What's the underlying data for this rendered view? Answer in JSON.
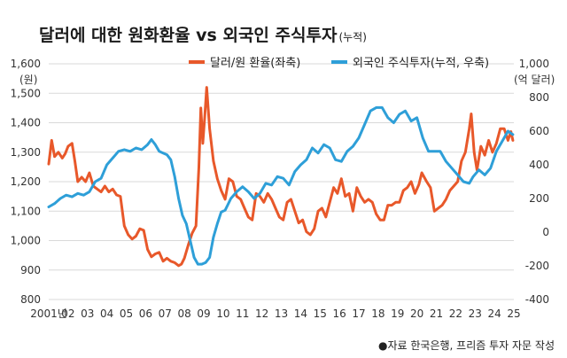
{
  "chart_data": {
    "type": "line",
    "title": "달러에 대한 원화환율 vs 외국인 주식투자",
    "title_suffix": "(누적)",
    "left_axis": {
      "unit": "(원)",
      "ticks": [
        "1,600",
        "1,500",
        "1,400",
        "1,300",
        "1,200",
        "1,100",
        "1,000",
        "900",
        "800"
      ],
      "ylim": [
        800,
        1600
      ]
    },
    "right_axis": {
      "unit": "(억 달러)",
      "ticks": [
        "1,000",
        "800",
        "600",
        "400",
        "200",
        "0",
        "-200",
        "-400"
      ],
      "ylim": [
        -400,
        1000
      ]
    },
    "x_ticks": [
      "2001년",
      "02",
      "03",
      "04",
      "05",
      "06",
      "07",
      "08",
      "09",
      "10",
      "11",
      "12",
      "13",
      "14",
      "15",
      "16",
      "17",
      "18",
      "19",
      "20",
      "21",
      "22",
      "23",
      "24",
      "25"
    ],
    "xlim": [
      2001,
      2025
    ],
    "grid": "horizontal",
    "legend_position": "top",
    "source": "●자료 한국은행, 프리즘 투자 자문 작성",
    "series": [
      {
        "name": "달러/원 환율(좌축)",
        "axis": "left",
        "color": "#e8582a",
        "points": [
          [
            2001.0,
            1260
          ],
          [
            2001.15,
            1340
          ],
          [
            2001.3,
            1285
          ],
          [
            2001.5,
            1300
          ],
          [
            2001.7,
            1280
          ],
          [
            2001.85,
            1295
          ],
          [
            2002.0,
            1320
          ],
          [
            2002.2,
            1330
          ],
          [
            2002.35,
            1270
          ],
          [
            2002.5,
            1200
          ],
          [
            2002.7,
            1215
          ],
          [
            2002.9,
            1200
          ],
          [
            2003.1,
            1230
          ],
          [
            2003.3,
            1185
          ],
          [
            2003.5,
            1175
          ],
          [
            2003.7,
            1165
          ],
          [
            2003.9,
            1185
          ],
          [
            2004.1,
            1165
          ],
          [
            2004.3,
            1175
          ],
          [
            2004.5,
            1155
          ],
          [
            2004.7,
            1150
          ],
          [
            2004.9,
            1050
          ],
          [
            2005.1,
            1020
          ],
          [
            2005.3,
            1005
          ],
          [
            2005.5,
            1015
          ],
          [
            2005.7,
            1040
          ],
          [
            2005.9,
            1035
          ],
          [
            2006.1,
            970
          ],
          [
            2006.3,
            945
          ],
          [
            2006.5,
            955
          ],
          [
            2006.7,
            960
          ],
          [
            2006.9,
            930
          ],
          [
            2007.1,
            940
          ],
          [
            2007.3,
            930
          ],
          [
            2007.5,
            925
          ],
          [
            2007.7,
            915
          ],
          [
            2007.85,
            920
          ],
          [
            2008.0,
            940
          ],
          [
            2008.2,
            985
          ],
          [
            2008.4,
            1025
          ],
          [
            2008.6,
            1050
          ],
          [
            2008.75,
            1250
          ],
          [
            2008.85,
            1450
          ],
          [
            2008.95,
            1330
          ],
          [
            2009.05,
            1420
          ],
          [
            2009.15,
            1520
          ],
          [
            2009.3,
            1380
          ],
          [
            2009.5,
            1270
          ],
          [
            2009.7,
            1210
          ],
          [
            2009.9,
            1170
          ],
          [
            2010.1,
            1140
          ],
          [
            2010.3,
            1210
          ],
          [
            2010.5,
            1200
          ],
          [
            2010.7,
            1150
          ],
          [
            2010.9,
            1140
          ],
          [
            2011.1,
            1110
          ],
          [
            2011.3,
            1080
          ],
          [
            2011.5,
            1070
          ],
          [
            2011.7,
            1160
          ],
          [
            2011.9,
            1150
          ],
          [
            2012.1,
            1130
          ],
          [
            2012.3,
            1160
          ],
          [
            2012.5,
            1140
          ],
          [
            2012.7,
            1110
          ],
          [
            2012.9,
            1080
          ],
          [
            2013.1,
            1070
          ],
          [
            2013.3,
            1130
          ],
          [
            2013.5,
            1140
          ],
          [
            2013.7,
            1100
          ],
          [
            2013.9,
            1060
          ],
          [
            2014.1,
            1070
          ],
          [
            2014.3,
            1030
          ],
          [
            2014.5,
            1020
          ],
          [
            2014.7,
            1040
          ],
          [
            2014.9,
            1100
          ],
          [
            2015.1,
            1110
          ],
          [
            2015.3,
            1080
          ],
          [
            2015.5,
            1130
          ],
          [
            2015.7,
            1180
          ],
          [
            2015.9,
            1160
          ],
          [
            2016.1,
            1210
          ],
          [
            2016.3,
            1150
          ],
          [
            2016.5,
            1160
          ],
          [
            2016.7,
            1100
          ],
          [
            2016.9,
            1180
          ],
          [
            2017.1,
            1150
          ],
          [
            2017.3,
            1130
          ],
          [
            2017.5,
            1140
          ],
          [
            2017.7,
            1130
          ],
          [
            2017.9,
            1090
          ],
          [
            2018.1,
            1070
          ],
          [
            2018.3,
            1070
          ],
          [
            2018.5,
            1120
          ],
          [
            2018.7,
            1120
          ],
          [
            2018.9,
            1130
          ],
          [
            2019.1,
            1130
          ],
          [
            2019.3,
            1170
          ],
          [
            2019.5,
            1180
          ],
          [
            2019.7,
            1200
          ],
          [
            2019.9,
            1160
          ],
          [
            2020.1,
            1190
          ],
          [
            2020.25,
            1230
          ],
          [
            2020.5,
            1200
          ],
          [
            2020.7,
            1180
          ],
          [
            2020.9,
            1100
          ],
          [
            2021.1,
            1110
          ],
          [
            2021.3,
            1120
          ],
          [
            2021.5,
            1140
          ],
          [
            2021.7,
            1170
          ],
          [
            2021.9,
            1185
          ],
          [
            2022.1,
            1200
          ],
          [
            2022.3,
            1270
          ],
          [
            2022.5,
            1300
          ],
          [
            2022.7,
            1380
          ],
          [
            2022.8,
            1430
          ],
          [
            2022.95,
            1300
          ],
          [
            2023.1,
            1240
          ],
          [
            2023.3,
            1320
          ],
          [
            2023.5,
            1290
          ],
          [
            2023.7,
            1340
          ],
          [
            2023.9,
            1300
          ],
          [
            2024.1,
            1330
          ],
          [
            2024.3,
            1380
          ],
          [
            2024.5,
            1380
          ],
          [
            2024.7,
            1340
          ],
          [
            2024.85,
            1370
          ],
          [
            2024.95,
            1340
          ]
        ]
      },
      {
        "name": "외국인 주식투자(누적, 우축)",
        "axis": "right",
        "color": "#2e9fd8",
        "points": [
          [
            2001.0,
            150
          ],
          [
            2001.3,
            170
          ],
          [
            2001.6,
            200
          ],
          [
            2001.9,
            220
          ],
          [
            2002.2,
            210
          ],
          [
            2002.5,
            230
          ],
          [
            2002.8,
            220
          ],
          [
            2003.1,
            240
          ],
          [
            2003.4,
            300
          ],
          [
            2003.7,
            320
          ],
          [
            2004.0,
            400
          ],
          [
            2004.3,
            440
          ],
          [
            2004.6,
            480
          ],
          [
            2004.9,
            490
          ],
          [
            2005.2,
            480
          ],
          [
            2005.5,
            500
          ],
          [
            2005.8,
            490
          ],
          [
            2006.1,
            520
          ],
          [
            2006.3,
            550
          ],
          [
            2006.5,
            520
          ],
          [
            2006.7,
            480
          ],
          [
            2006.9,
            470
          ],
          [
            2007.1,
            460
          ],
          [
            2007.3,
            430
          ],
          [
            2007.5,
            330
          ],
          [
            2007.7,
            200
          ],
          [
            2007.9,
            100
          ],
          [
            2008.1,
            50
          ],
          [
            2008.3,
            -50
          ],
          [
            2008.5,
            -150
          ],
          [
            2008.7,
            -190
          ],
          [
            2008.9,
            -190
          ],
          [
            2009.1,
            -180
          ],
          [
            2009.3,
            -150
          ],
          [
            2009.5,
            -30
          ],
          [
            2009.7,
            50
          ],
          [
            2009.9,
            120
          ],
          [
            2010.1,
            130
          ],
          [
            2010.4,
            200
          ],
          [
            2010.7,
            240
          ],
          [
            2011.0,
            270
          ],
          [
            2011.3,
            240
          ],
          [
            2011.6,
            200
          ],
          [
            2011.9,
            230
          ],
          [
            2012.2,
            290
          ],
          [
            2012.5,
            280
          ],
          [
            2012.8,
            330
          ],
          [
            2013.1,
            320
          ],
          [
            2013.4,
            280
          ],
          [
            2013.7,
            360
          ],
          [
            2014.0,
            400
          ],
          [
            2014.3,
            430
          ],
          [
            2014.6,
            500
          ],
          [
            2014.9,
            470
          ],
          [
            2015.2,
            520
          ],
          [
            2015.5,
            500
          ],
          [
            2015.8,
            430
          ],
          [
            2016.1,
            420
          ],
          [
            2016.4,
            480
          ],
          [
            2016.7,
            510
          ],
          [
            2017.0,
            560
          ],
          [
            2017.3,
            640
          ],
          [
            2017.6,
            720
          ],
          [
            2017.9,
            740
          ],
          [
            2018.2,
            740
          ],
          [
            2018.5,
            680
          ],
          [
            2018.8,
            650
          ],
          [
            2019.1,
            700
          ],
          [
            2019.4,
            720
          ],
          [
            2019.7,
            660
          ],
          [
            2020.0,
            680
          ],
          [
            2020.3,
            560
          ],
          [
            2020.6,
            480
          ],
          [
            2020.9,
            480
          ],
          [
            2021.2,
            480
          ],
          [
            2021.5,
            420
          ],
          [
            2021.8,
            380
          ],
          [
            2022.1,
            340
          ],
          [
            2022.4,
            300
          ],
          [
            2022.7,
            290
          ],
          [
            2022.9,
            330
          ],
          [
            2023.2,
            370
          ],
          [
            2023.5,
            340
          ],
          [
            2023.8,
            380
          ],
          [
            2024.1,
            480
          ],
          [
            2024.4,
            540
          ],
          [
            2024.7,
            600
          ],
          [
            2024.95,
            580
          ]
        ]
      }
    ]
  }
}
